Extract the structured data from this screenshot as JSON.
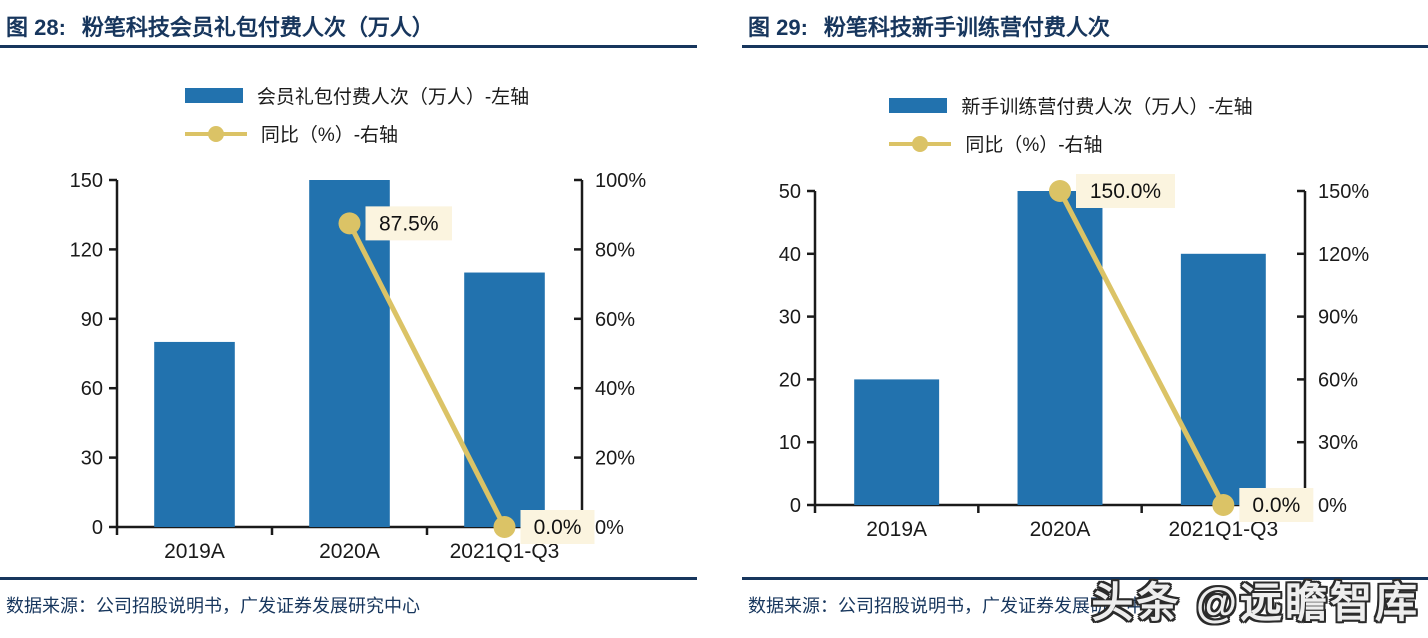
{
  "watermark": {
    "text": "头条 @远瞻智库"
  },
  "colors": {
    "navy": "#17365D",
    "bar_blue": "#2272AE",
    "line_gold": "#DBC366",
    "label_bg": "#FBF4DF",
    "axis_black": "#1a1a1a"
  },
  "charts": [
    {
      "figure_label": "图  28:",
      "title": "粉笔科技会员礼包付费人次（万人）",
      "legend": [
        {
          "type": "bar",
          "label": "会员礼包付费人次（万人）-左轴",
          "color": "#2272AE"
        },
        {
          "type": "line",
          "label": "同比（%）-右轴",
          "color": "#DBC366"
        }
      ],
      "source": "数据来源：公司招股说明书，广发证券发展研究中心",
      "chart_data": {
        "type": "bar",
        "title": "粉笔科技会员礼包付费人次（万人）",
        "categories": [
          "2019A",
          "2020A",
          "2021Q1-Q3"
        ],
        "series": [
          {
            "name": "会员礼包付费人次（万人）-左轴",
            "type": "bar",
            "axis": "left",
            "values": [
              80,
              150,
              110
            ],
            "color": "#2272AE"
          },
          {
            "name": "同比（%）-右轴",
            "type": "line",
            "axis": "right",
            "values": [
              null,
              87.5,
              0.0
            ],
            "labels": [
              null,
              "87.5%",
              "0.0%"
            ],
            "color": "#DBC366"
          }
        ],
        "left_axis": {
          "min": 0,
          "max": 150,
          "step": 30,
          "ticks": [
            "0",
            "30",
            "60",
            "90",
            "120",
            "150"
          ]
        },
        "right_axis": {
          "min": 0,
          "max": 100,
          "step": 20,
          "ticks": [
            "0%",
            "20%",
            "40%",
            "60%",
            "80%",
            "100%"
          ]
        },
        "grid": false,
        "legend_position": "top"
      }
    },
    {
      "figure_label": "图  29:",
      "title": "粉笔科技新手训练营付费人次",
      "legend": [
        {
          "type": "bar",
          "label": "新手训练营付费人次（万人）-左轴",
          "color": "#2272AE"
        },
        {
          "type": "line",
          "label": "同比（%）-右轴",
          "color": "#DBC366"
        }
      ],
      "source": "数据来源：公司招股说明书，广发证券发展研究中心",
      "chart_data": {
        "type": "bar",
        "title": "粉笔科技新手训练营付费人次",
        "categories": [
          "2019A",
          "2020A",
          "2021Q1-Q3"
        ],
        "series": [
          {
            "name": "新手训练营付费人次（万人）-左轴",
            "type": "bar",
            "axis": "left",
            "values": [
              20,
              50,
              40
            ],
            "color": "#2272AE"
          },
          {
            "name": "同比（%）-右轴",
            "type": "line",
            "axis": "right",
            "values": [
              null,
              150.0,
              0.0
            ],
            "labels": [
              null,
              "150.0%",
              "0.0%"
            ],
            "color": "#DBC366"
          }
        ],
        "left_axis": {
          "min": 0,
          "max": 50,
          "step": 10,
          "ticks": [
            "0",
            "10",
            "20",
            "30",
            "40",
            "50"
          ]
        },
        "right_axis": {
          "min": 0,
          "max": 150,
          "step": 30,
          "ticks": [
            "0%",
            "30%",
            "60%",
            "90%",
            "120%",
            "150%"
          ]
        },
        "grid": false,
        "legend_position": "top"
      }
    }
  ]
}
